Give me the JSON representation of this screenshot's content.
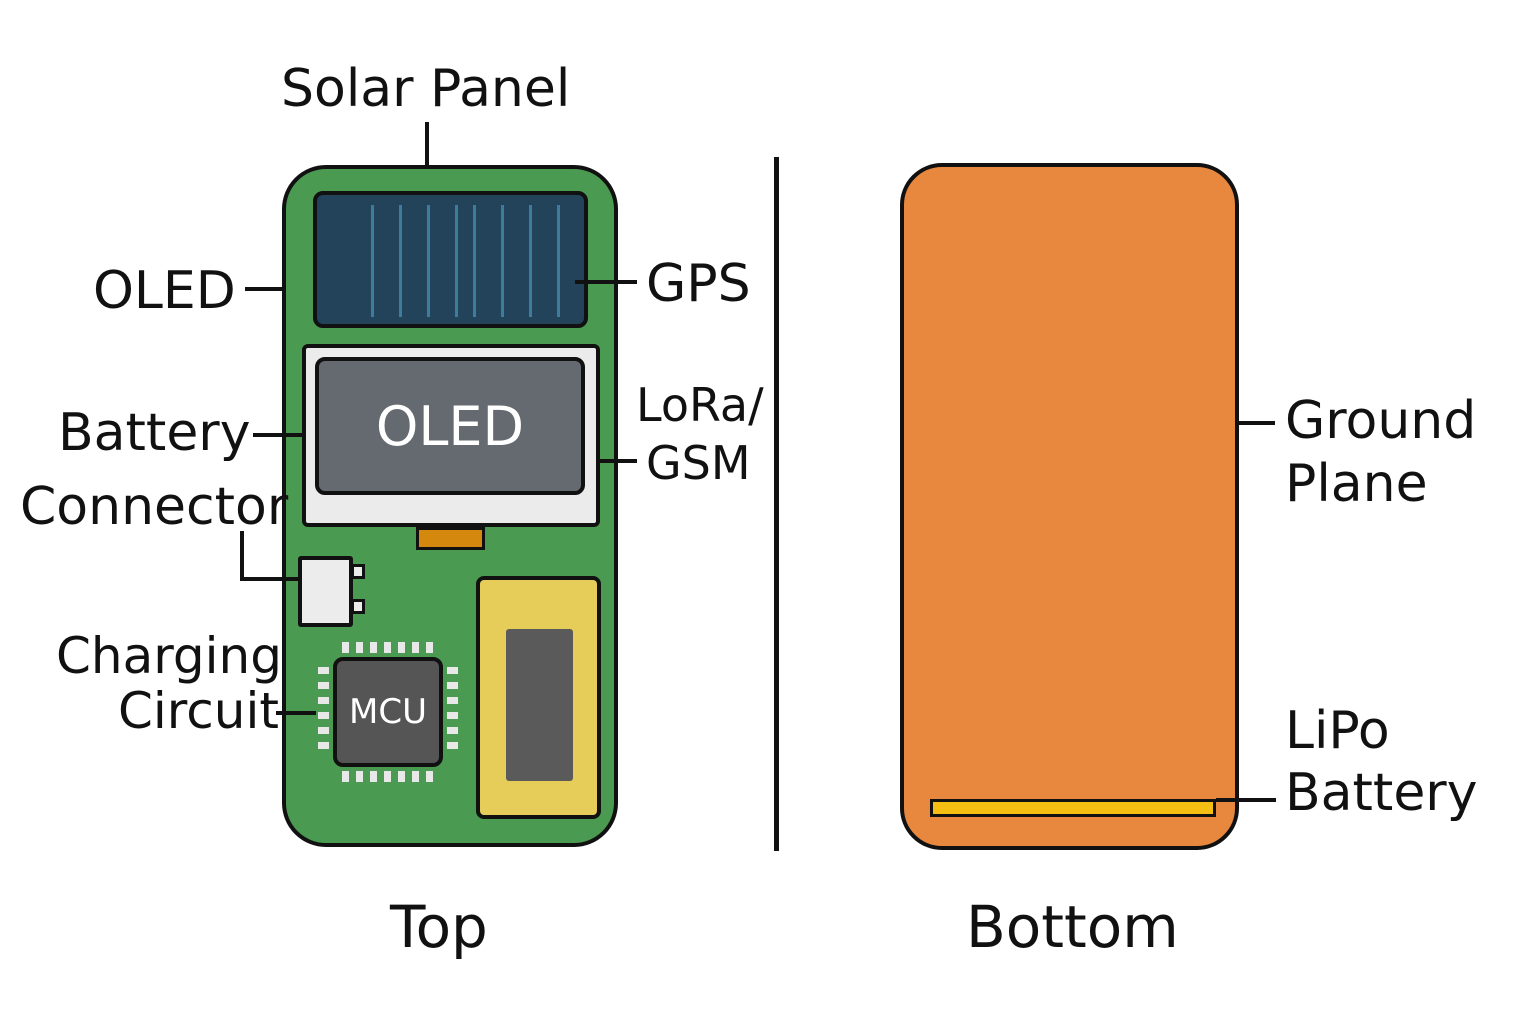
{
  "top_view": {
    "caption": "Top",
    "labels": {
      "solar_panel": "Solar Panel",
      "oled": "OLED",
      "gps": "GPS",
      "battery": "Battery",
      "lora_gsm": [
        "LoRa/",
        "GSM"
      ],
      "connector": "Connector",
      "charging_circuit": [
        "Charging",
        "Circuit"
      ]
    },
    "oled_screen_text": "OLED",
    "mcu_text": "MCU"
  },
  "bottom_view": {
    "caption": "Bottom",
    "labels": {
      "ground_plane": [
        "Ground",
        "Plane"
      ],
      "lipo_battery": [
        "LiPo",
        "Battery"
      ]
    }
  },
  "colors": {
    "pcb_green": "#4a9b51",
    "solar_blue": "#23435b",
    "oled_grey": "#646a70",
    "mcu_grey": "#555555",
    "battery_yellow": "#e6cd5a",
    "ground_orange": "#e8883f",
    "lipo_yellow": "#f5be12",
    "flex_orange": "#d4880e"
  }
}
